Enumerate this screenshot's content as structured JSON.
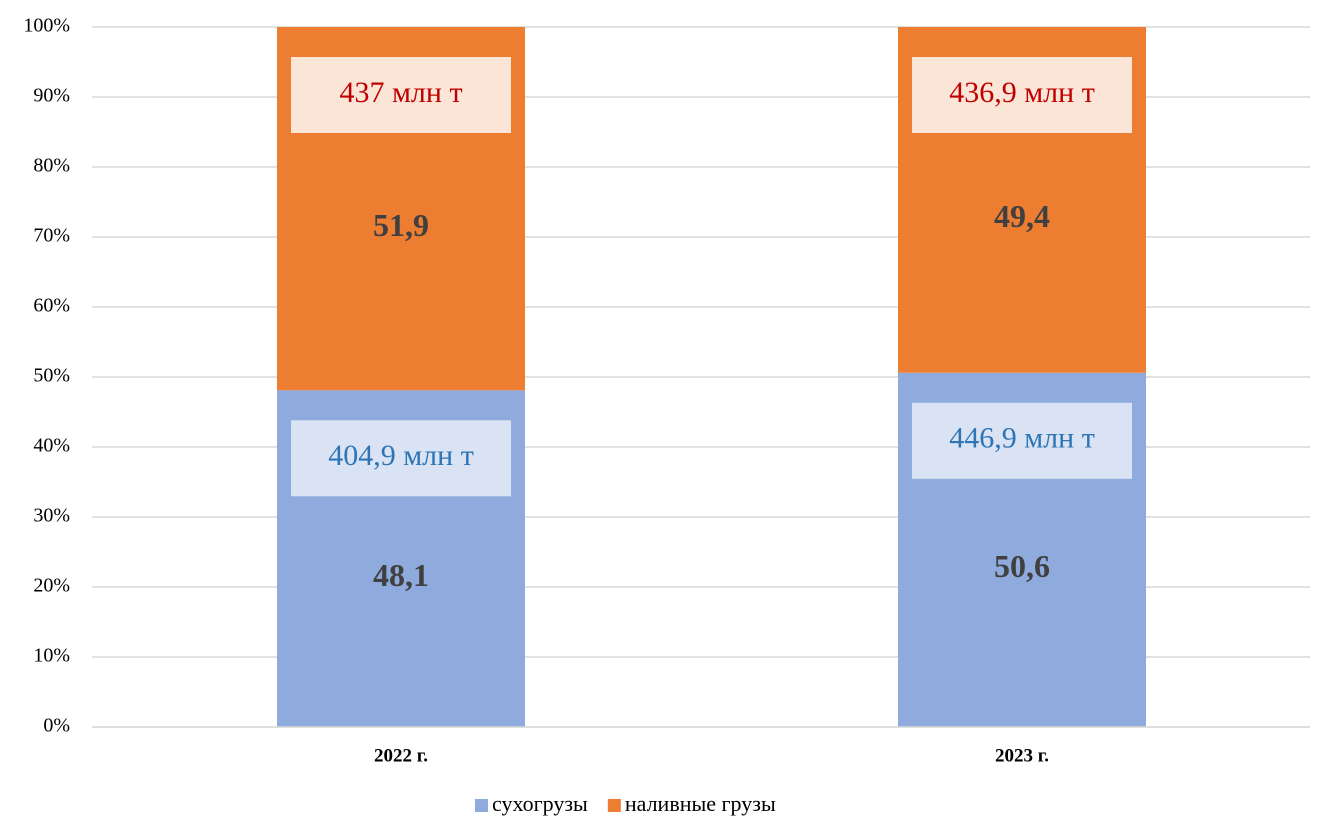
{
  "chart_data": {
    "type": "stacked_bar",
    "categories": [
      "2022 г.",
      "2023 г."
    ],
    "series": [
      {
        "name": "сухогрузы",
        "color": "#8faadc",
        "values": [
          48.1,
          50.6
        ],
        "value_labels": [
          "48,1",
          "50,6"
        ],
        "annotations": [
          "404,9 млн т",
          "446,9 млн т"
        ],
        "annotation_color": "#2e75b6",
        "annotation_fill": "#dae3f3"
      },
      {
        "name": "наливные грузы",
        "color": "#ed7d31",
        "values": [
          51.9,
          49.4
        ],
        "value_labels": [
          "51,9",
          "49,4"
        ],
        "annotations": [
          "437 млн т",
          "436,9 млн т"
        ],
        "annotation_color": "#c00000",
        "annotation_fill": "#fbe5d6"
      }
    ],
    "ylim": [
      0,
      100
    ],
    "yticks": [
      {
        "value": 0,
        "label": "0%"
      },
      {
        "value": 10,
        "label": "10%"
      },
      {
        "value": 20,
        "label": "20%"
      },
      {
        "value": 30,
        "label": "30%"
      },
      {
        "value": 40,
        "label": "40%"
      },
      {
        "value": 50,
        "label": "50%"
      },
      {
        "value": 60,
        "label": "60%"
      },
      {
        "value": 70,
        "label": "70%"
      },
      {
        "value": 80,
        "label": "80%"
      },
      {
        "value": 90,
        "label": "90%"
      },
      {
        "value": 100,
        "label": "100%"
      }
    ],
    "grid": true,
    "legend": "bottom"
  }
}
